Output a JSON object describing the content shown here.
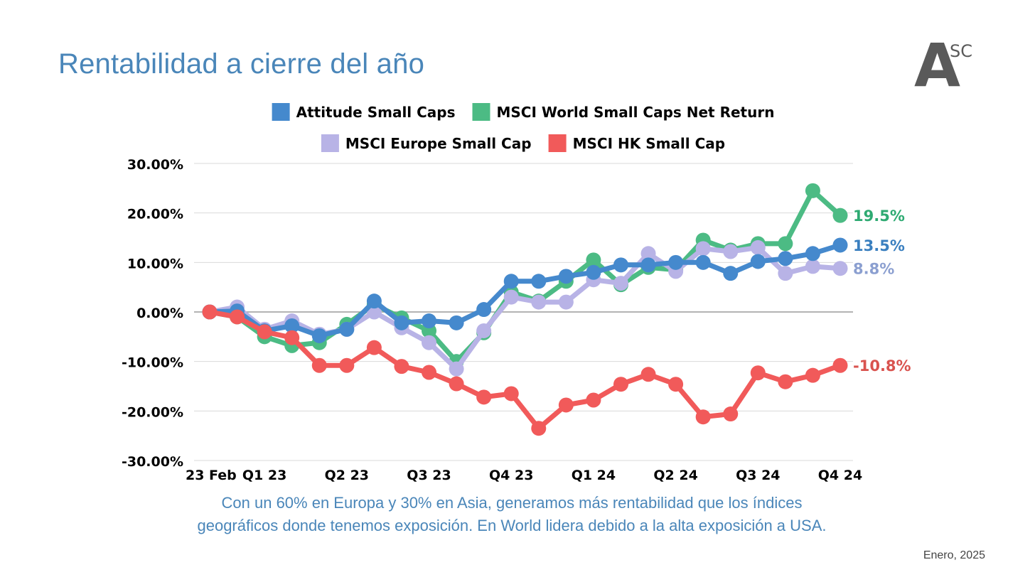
{
  "title": "Rentabilidad a cierre del año",
  "logo": {
    "letter": "A",
    "super": "SC"
  },
  "caption_line1": "Con un 60% en Europa y 30% en Asia, generamos más rentabilidad que los índices",
  "caption_line2": "geográficos donde tenemos exposición. En World lidera debido a la alta exposición a USA.",
  "footer_date": "Enero, 2025",
  "chart_data": {
    "type": "line",
    "title": "",
    "xlabel": "",
    "ylabel": "",
    "ylim": [
      -30,
      30
    ],
    "yticks": [
      30,
      20,
      10,
      0,
      -10,
      -20,
      -30
    ],
    "ytick_labels": [
      "30.00%",
      "20.00%",
      "10.00%",
      "0.00%",
      "-10.00%",
      "-20.00%",
      "-30.00%"
    ],
    "x": [
      0,
      1,
      2,
      3,
      4,
      5,
      6,
      7,
      8,
      9,
      10,
      11,
      12,
      13,
      14,
      15,
      16,
      17,
      18,
      19,
      20,
      21,
      22,
      23
    ],
    "x_ticks": [
      {
        "index": 0,
        "label": "23 Feb"
      },
      {
        "index": 2,
        "label": "Q1 23"
      },
      {
        "index": 5,
        "label": "Q2 23"
      },
      {
        "index": 8,
        "label": "Q3 23"
      },
      {
        "index": 11,
        "label": "Q4 23"
      },
      {
        "index": 14,
        "label": "Q1 24"
      },
      {
        "index": 17,
        "label": "Q2 24"
      },
      {
        "index": 20,
        "label": "Q3 24"
      },
      {
        "index": 23,
        "label": "Q4 24"
      }
    ],
    "legend_rows": [
      [
        "Attitude Small Caps",
        "MSCI World Small Caps Net Return"
      ],
      [
        "MSCI Europe Small Cap",
        "MSCI HK Small Cap"
      ]
    ],
    "series": [
      {
        "name": "MSCI World Small Caps Net Return",
        "color": "#4cbb84",
        "values": [
          0,
          -1,
          -5,
          -6.8,
          -6.2,
          -2.5,
          1.5,
          -1.2,
          -3.8,
          -10,
          -4.2,
          4,
          2.2,
          6.2,
          10.5,
          5.5,
          9,
          8.5,
          14.5,
          12.5,
          13.8,
          13.8,
          24.5,
          19.5
        ],
        "end_label": "19.5%",
        "end_color": "#2eaa72"
      },
      {
        "name": "MSCI Europe Small Cap",
        "color": "#b8b3e6",
        "values": [
          0,
          1,
          -3.5,
          -1.8,
          -4.5,
          -3.5,
          0,
          -3.2,
          -6.2,
          -11.5,
          -3.8,
          3,
          2,
          2,
          6.5,
          5.8,
          11.8,
          8.2,
          12.8,
          12.2,
          13,
          7.8,
          9.2,
          8.8
        ],
        "end_label": "8.8%",
        "end_color": "#8b9fd0"
      },
      {
        "name": "Attitude Small Caps",
        "color": "#4589cd",
        "values": [
          0,
          0.2,
          -3.8,
          -2.8,
          -4.8,
          -3.5,
          2.2,
          -2.2,
          -1.8,
          -2.2,
          0.5,
          6.2,
          6.2,
          7.2,
          8,
          9.5,
          9.5,
          10,
          10,
          7.8,
          10.2,
          10.8,
          11.8,
          13.5
        ],
        "end_label": "13.5%",
        "end_color": "#3a7fbf"
      },
      {
        "name": "MSCI HK Small Cap",
        "color": "#f15a5a",
        "values": [
          0,
          -1,
          -4,
          -5.2,
          -10.8,
          -10.8,
          -7.2,
          -11,
          -12.2,
          -14.5,
          -17.2,
          -16.5,
          -23.5,
          -18.8,
          -17.8,
          -14.6,
          -12.6,
          -14.6,
          -21.2,
          -20.6,
          -12.3,
          -14.1,
          -12.8,
          -10.8
        ],
        "end_label": "-10.8%",
        "end_color": "#d9534f"
      }
    ]
  }
}
